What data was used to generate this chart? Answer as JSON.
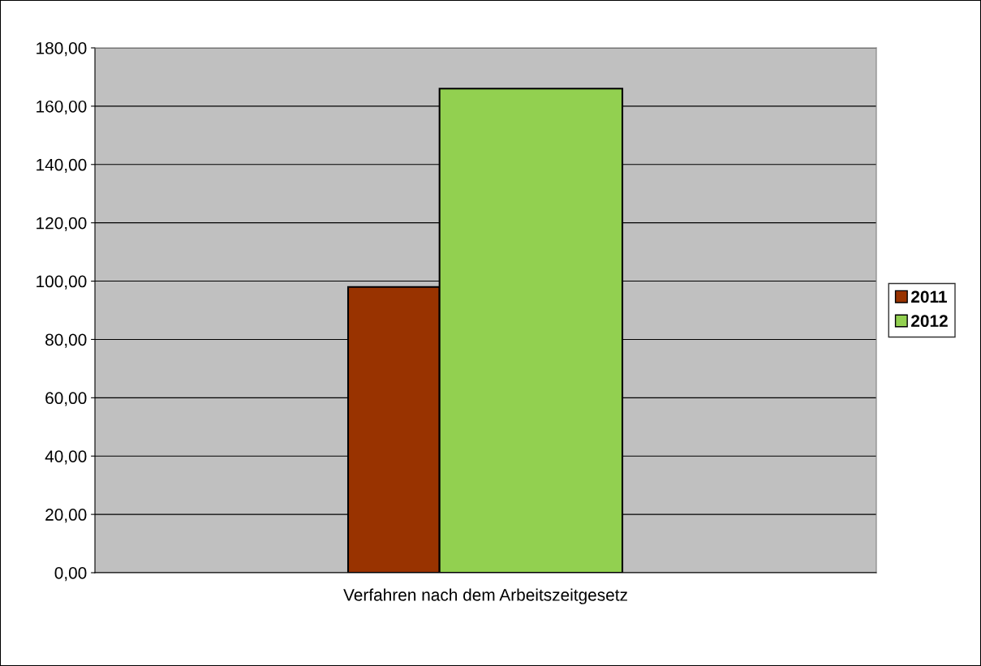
{
  "chart_data": {
    "type": "bar",
    "categories": [
      "Verfahren nach dem Arbeitszeitgesetz"
    ],
    "series": [
      {
        "name": "2011",
        "color": "#993300",
        "values": [
          98
        ]
      },
      {
        "name": "2012",
        "color": "#92d050",
        "values": [
          166
        ]
      }
    ],
    "ylim": [
      0,
      180
    ],
    "yticks": [
      {
        "value": 0,
        "label": "0,00"
      },
      {
        "value": 20,
        "label": "20,00"
      },
      {
        "value": 40,
        "label": "40,00"
      },
      {
        "value": 60,
        "label": "60,00"
      },
      {
        "value": 80,
        "label": "80,00"
      },
      {
        "value": 100,
        "label": "100,00"
      },
      {
        "value": 120,
        "label": "120,00"
      },
      {
        "value": 140,
        "label": "140,00"
      },
      {
        "value": 160,
        "label": "160,00"
      },
      {
        "value": 180,
        "label": "180,00"
      }
    ],
    "grid": "y",
    "legend": "right"
  }
}
